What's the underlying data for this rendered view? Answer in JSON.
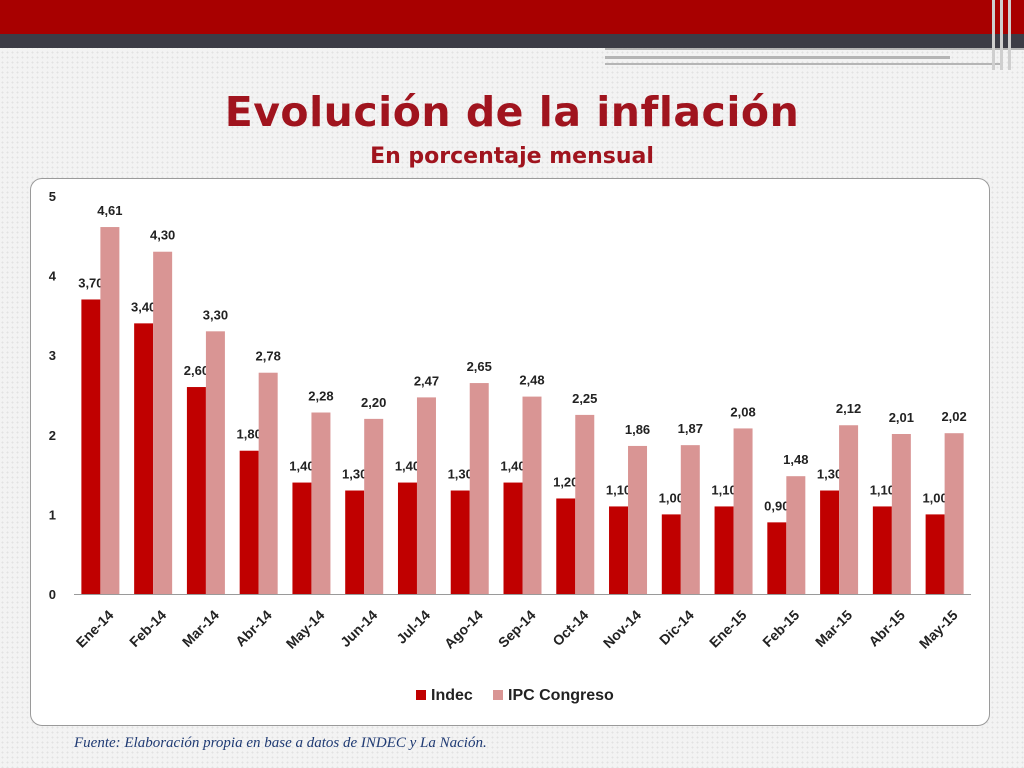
{
  "slide": {
    "title": "Evolución de la inflación",
    "subtitle": "En porcentaje mensual",
    "source": "Fuente: Elaboración propia en base a datos de INDEC y La Nación."
  },
  "colors": {
    "header_red": "#a80000",
    "header_dark": "#3c3c46",
    "title": "#a0141e",
    "indec": "#c00000",
    "ipc": "#d99594",
    "source_text": "#1f3a73"
  },
  "chart_data": {
    "type": "bar",
    "categories": [
      "Ene-14",
      "Feb-14",
      "Mar-14",
      "Abr-14",
      "May-14",
      "Jun-14",
      "Jul-14",
      "Ago-14",
      "Sep-14",
      "Oct-14",
      "Nov-14",
      "Dic-14",
      "Ene-15",
      "Feb-15",
      "Mar-15",
      "Abr-15",
      "May-15"
    ],
    "series": [
      {
        "name": "Indec",
        "color": "#c00000",
        "values": [
          3.7,
          3.4,
          2.6,
          1.8,
          1.4,
          1.3,
          1.4,
          1.3,
          1.4,
          1.2,
          1.1,
          1.0,
          1.1,
          0.9,
          1.3,
          1.1,
          1.0
        ],
        "labels": [
          "3,70",
          "3,40",
          "2,60",
          "1,80",
          "1,40",
          "1,30",
          "1,40",
          "1,30",
          "1,40",
          "1,20",
          "1,10",
          "1,00",
          "1,10",
          "0,90",
          "1,30",
          "1,10",
          "1,00"
        ]
      },
      {
        "name": "IPC Congreso",
        "color": "#d99594",
        "values": [
          4.61,
          4.3,
          3.3,
          2.78,
          2.28,
          2.2,
          2.47,
          2.65,
          2.48,
          2.25,
          1.86,
          1.87,
          2.08,
          1.48,
          2.12,
          2.01,
          2.02
        ],
        "labels": [
          "4,61",
          "4,30",
          "3,30",
          "2,78",
          "2,28",
          "2,20",
          "2,47",
          "2,65",
          "2,48",
          "2,25",
          "1,86",
          "1,87",
          "2,08",
          "1,48",
          "2,12",
          "2,01",
          "2,02"
        ]
      }
    ],
    "ylim": [
      0,
      5
    ],
    "yticks": [
      "0",
      "1",
      "2",
      "3",
      "4",
      "5"
    ],
    "legend_position": "bottom",
    "grid": false
  }
}
